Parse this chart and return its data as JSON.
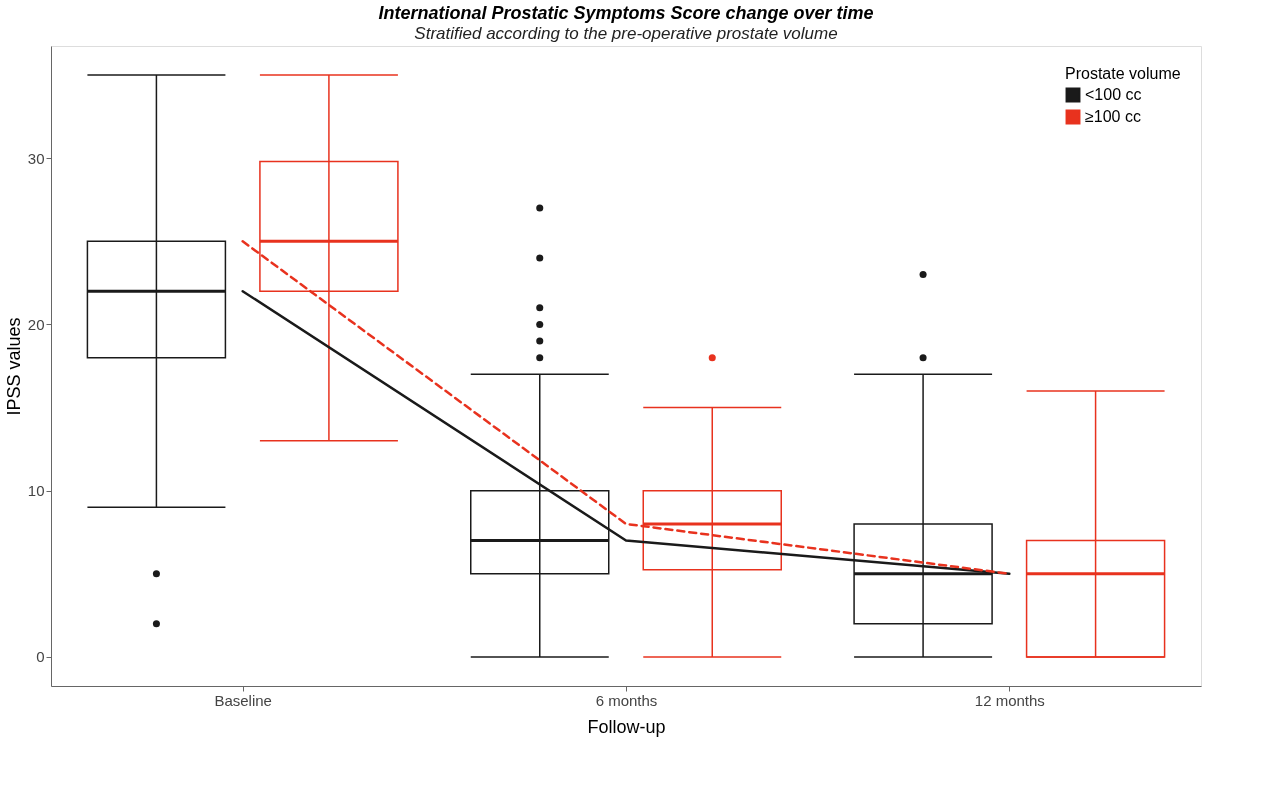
{
  "chart_data": {
    "type": "box",
    "title": "International Prostatic Symptoms Score change over time",
    "subtitle": "Stratified according to the pre-operative prostate volume",
    "xlabel": "Follow-up",
    "ylabel": "IPSS values",
    "legend_title": "Prostate volume",
    "legend": "top right",
    "grid": false,
    "categories": [
      "Baseline",
      "6 months",
      "12 months"
    ],
    "ylim": [
      -1.75,
      36.75
    ],
    "yticks": [
      0,
      10,
      20,
      30
    ],
    "series": [
      {
        "name": "<100 cc",
        "color": "#1a1a1a",
        "boxes": [
          {
            "low": 9,
            "q1": 18,
            "median": 22,
            "q3": 25,
            "high": 35,
            "outliers": [
              5,
              2
            ]
          },
          {
            "low": 0,
            "q1": 5,
            "median": 7,
            "q3": 10,
            "high": 17,
            "outliers": [
              18,
              19,
              20,
              21,
              24,
              27
            ]
          },
          {
            "low": 0,
            "q1": 2,
            "median": 5,
            "q3": 8,
            "high": 17,
            "outliers": [
              18,
              23
            ]
          }
        ]
      },
      {
        "name": "≥100 cc",
        "color": "#e8321e",
        "boxes": [
          {
            "low": 13,
            "q1": 22,
            "median": 25,
            "q3": 29.8,
            "high": 35
          },
          {
            "low": 0,
            "q1": 5.25,
            "median": 8,
            "q3": 10,
            "high": 15,
            "outliers": [
              18
            ]
          },
          {
            "low": 0,
            "q1": 0,
            "median": 5,
            "q3": 7,
            "high": 16
          }
        ]
      },
      {
        "type": "line",
        "color": "#1a1a1a",
        "line_style": "solid",
        "values": [
          22,
          7,
          5
        ]
      },
      {
        "type": "line",
        "color": "#e8321e",
        "line_style": "dashed",
        "values": [
          25,
          8,
          5
        ]
      }
    ]
  }
}
